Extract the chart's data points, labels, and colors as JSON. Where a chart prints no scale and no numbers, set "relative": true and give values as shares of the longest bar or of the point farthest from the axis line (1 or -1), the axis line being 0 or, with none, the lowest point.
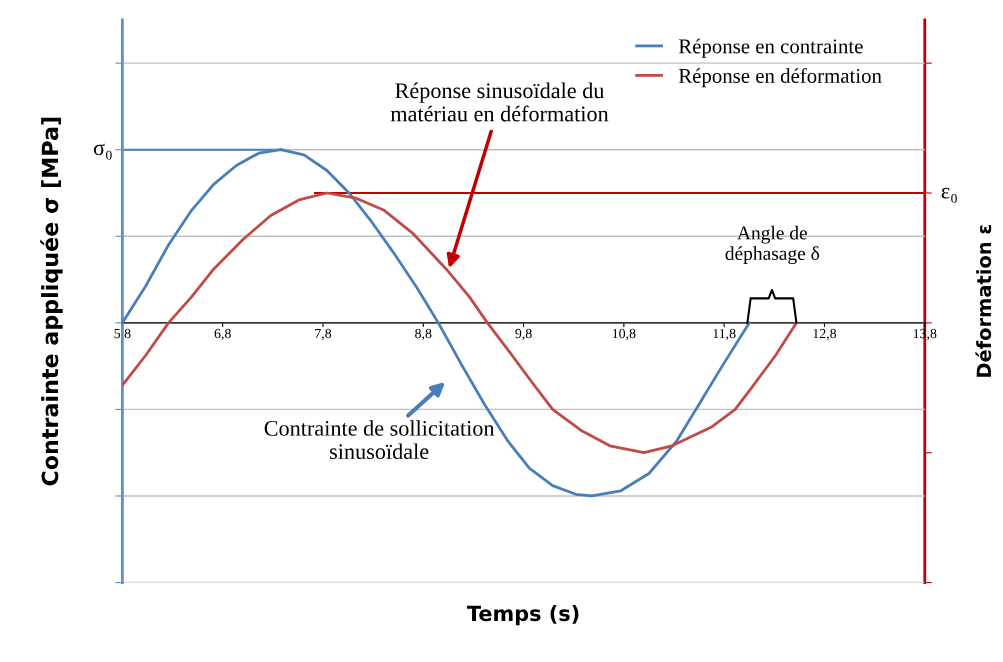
{
  "chart_data": {
    "type": "line",
    "relative": true,
    "ylabel": "Contrainte appliquée σ [MPa]",
    "y2label": "Déformation ε",
    "xlim": [
      5.8,
      13.8
    ],
    "xticks": [
      {
        "value": 5.8,
        "label": "5,8"
      },
      {
        "value": 6.8,
        "label": "6,8"
      },
      {
        "value": 7.8,
        "label": "7,8"
      },
      {
        "value": 8.8,
        "label": "8,8"
      },
      {
        "value": 9.8,
        "label": "9,8"
      },
      {
        "value": 10.8,
        "label": "10,8"
      },
      {
        "value": 11.8,
        "label": "11,8"
      },
      {
        "value": 12.8,
        "label": "12,8"
      },
      {
        "value": 13.8,
        "label": "13,8"
      }
    ],
    "grid": "y",
    "legend": "top right",
    "marker": "none",
    "line_style": "solid",
    "series": [
      {
        "name": "Réponse en contrainte",
        "color": "#4a7ebb",
        "x": [
          5.8,
          6.03,
          6.26,
          6.49,
          6.71,
          6.94,
          7.16,
          7.38,
          7.61,
          7.84,
          8.06,
          8.29,
          8.51,
          8.74,
          8.95,
          9.19,
          9.41,
          9.64,
          9.86,
          10.09,
          10.32,
          10.48,
          10.77,
          11.05,
          11.33,
          11.55,
          11.78,
          12.05
        ],
        "values": [
          0,
          0.21,
          0.45,
          0.65,
          0.8,
          0.91,
          0.98,
          1,
          0.97,
          0.88,
          0.75,
          0.58,
          0.4,
          0.2,
          0,
          -0.25,
          -0.47,
          -0.68,
          -0.84,
          -0.94,
          -0.99,
          -1,
          -0.97,
          -0.87,
          -0.68,
          -0.47,
          -0.25,
          0
        ]
      },
      {
        "name": "Réponse en déformation",
        "color": "#be4b48",
        "x": [
          5.8,
          6.03,
          6.26,
          6.49,
          6.71,
          7.0,
          7.28,
          7.56,
          7.84,
          8.13,
          8.41,
          8.69,
          9.03,
          9.26,
          9.44,
          9.65,
          9.88,
          10.09,
          10.37,
          10.66,
          11.0,
          11.28,
          11.68,
          11.91,
          12.08,
          12.31,
          12.52
        ],
        "values": [
          -0.36,
          -0.19,
          0,
          0.15,
          0.31,
          0.48,
          0.62,
          0.71,
          0.75,
          0.72,
          0.65,
          0.52,
          0.31,
          0.15,
          0,
          -0.16,
          -0.34,
          -0.5,
          -0.62,
          -0.71,
          -0.75,
          -0.71,
          -0.6,
          -0.5,
          -0.37,
          -0.19,
          0
        ]
      }
    ],
    "ref_lines": [
      {
        "axis": "y",
        "value": 1,
        "label": "σ₀",
        "color": "#4a7ebb"
      },
      {
        "axis": "y",
        "value": 0.75,
        "label": "ε₀",
        "color": "#c00000"
      }
    ],
    "annotations": [
      {
        "text": "Réponse sinusoïdale du\nmatériau en déformation",
        "x": 9.05,
        "y": 0.3
      },
      "Contrainte de sollicitation\nsinusoïdale",
      "Angle de\ndéphasage δ",
      "Temps (s)"
    ]
  }
}
